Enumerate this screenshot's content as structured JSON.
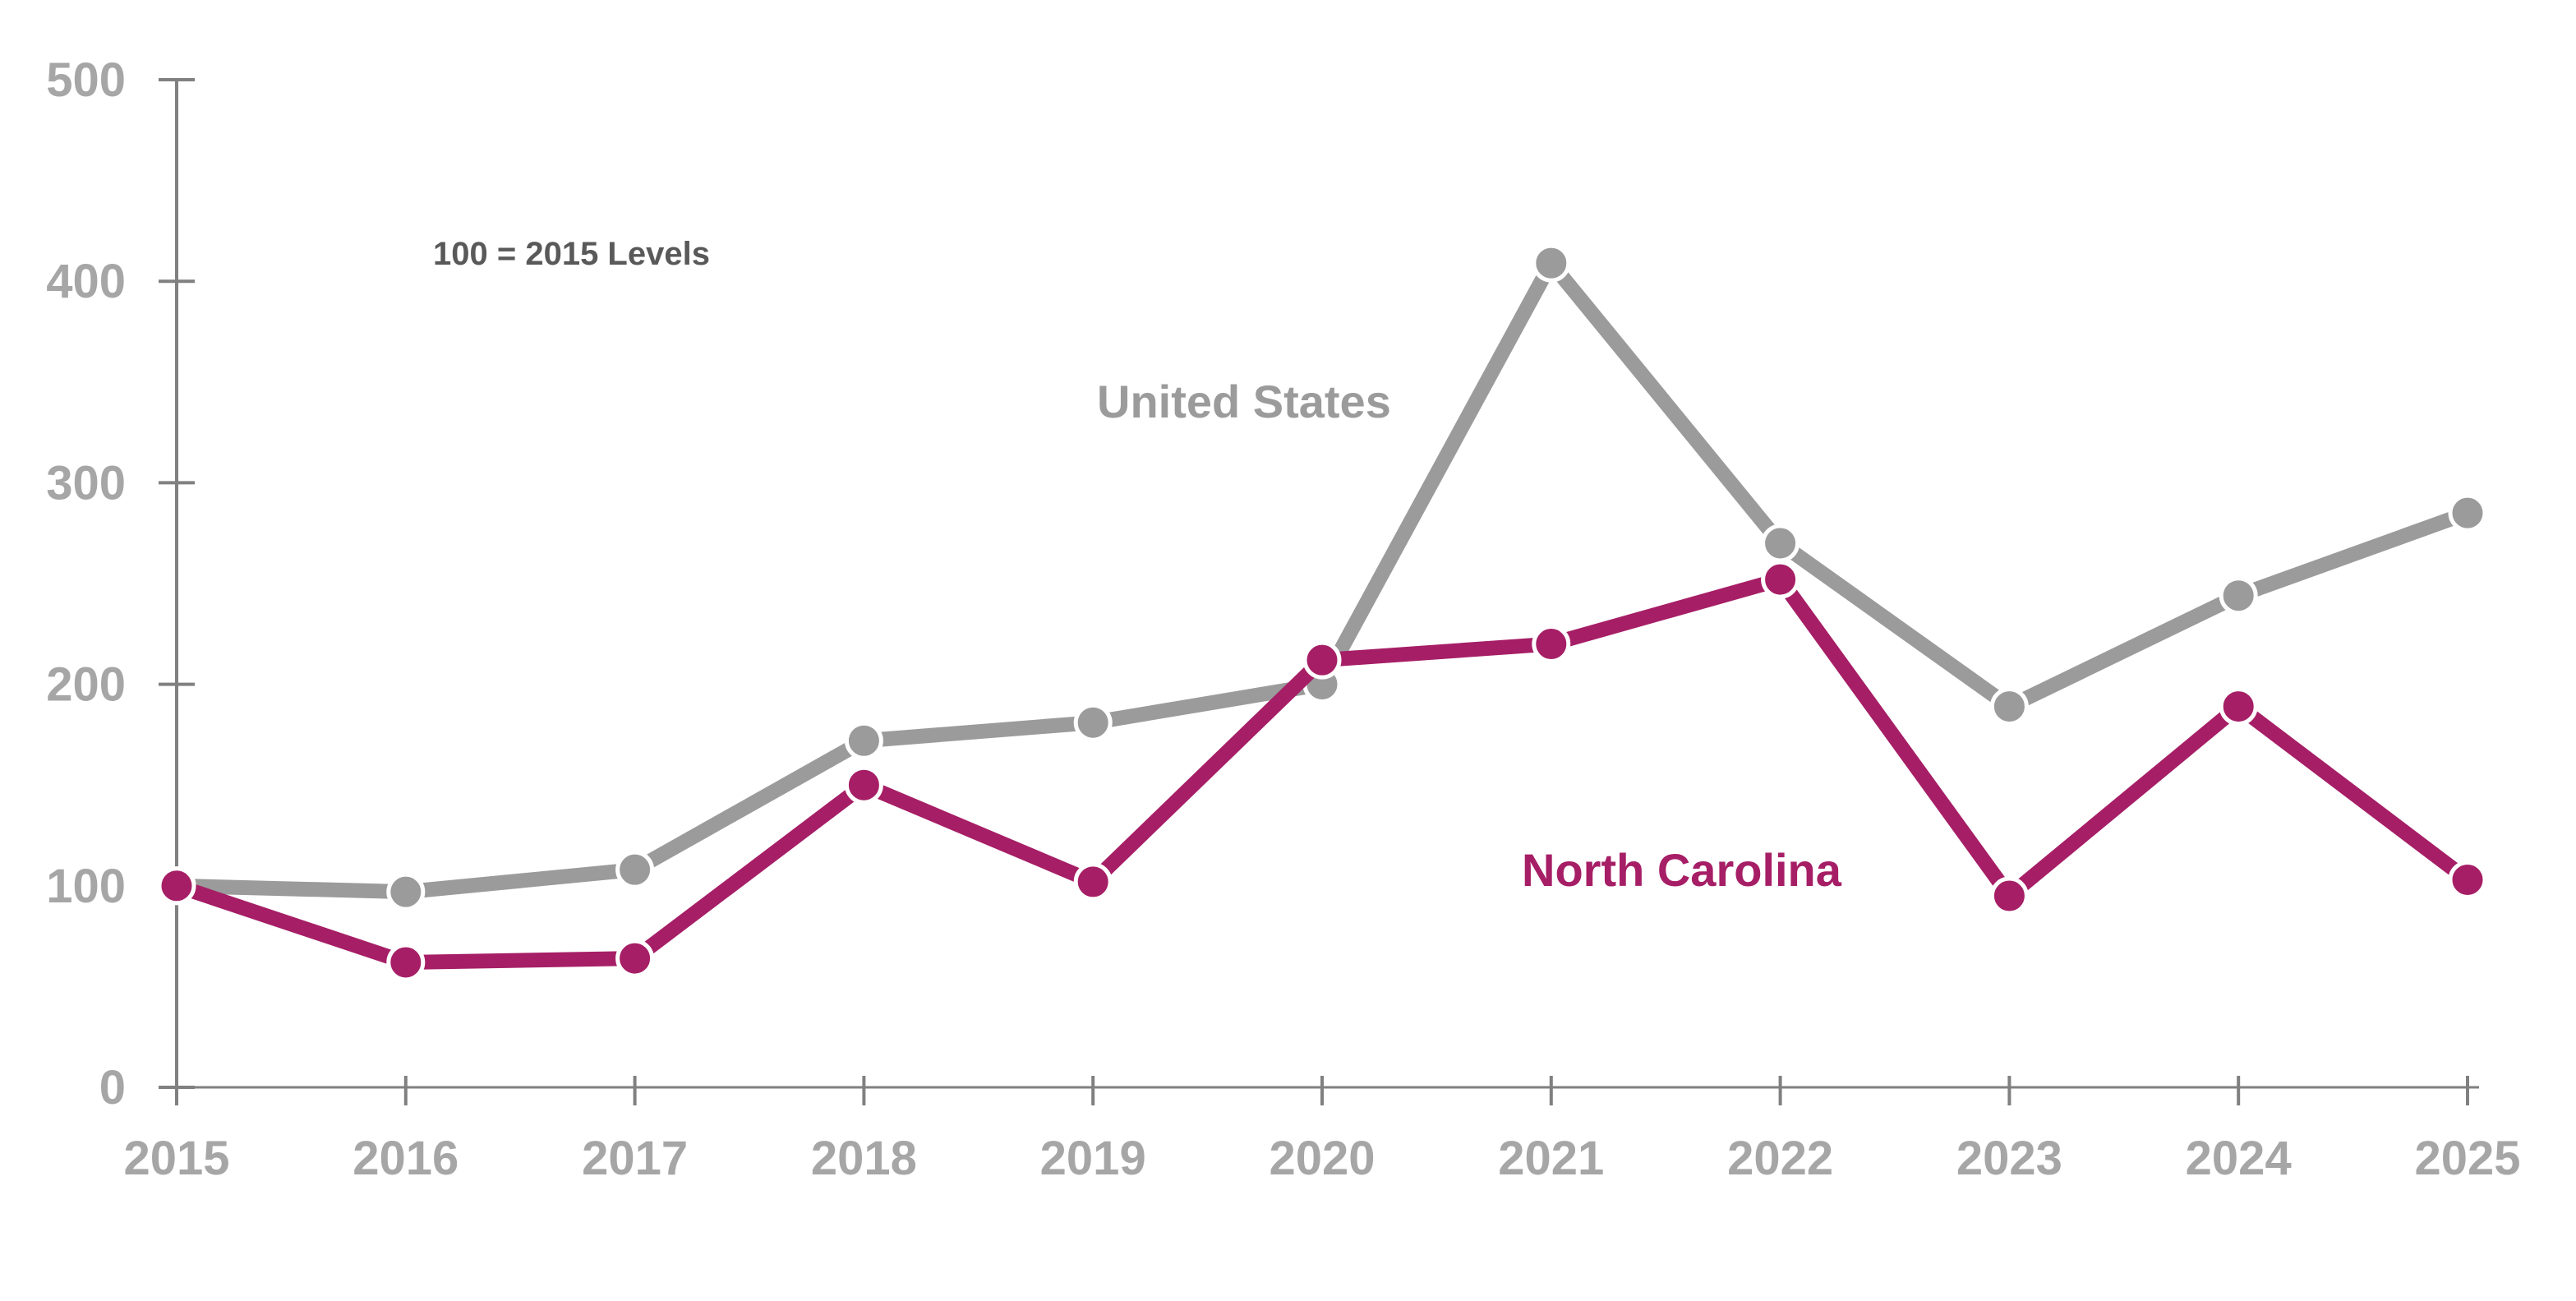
{
  "chart_data": {
    "type": "line",
    "title": "",
    "xlabel": "",
    "ylabel": "",
    "annotation": "100 = 2015 Levels",
    "x": [
      "2015",
      "2016",
      "2017",
      "2018",
      "2019",
      "2020",
      "2021",
      "2022",
      "2023",
      "2024",
      "2025"
    ],
    "ylim": [
      0,
      500
    ],
    "yticks": [
      "0",
      "100",
      "200",
      "300",
      "400",
      "500"
    ],
    "grid": false,
    "legend": "inline labels",
    "series": [
      {
        "name": "United States",
        "color": "#9b9b9b",
        "values": [
          100,
          97,
          108,
          172,
          181,
          200,
          409,
          270,
          189,
          244,
          285
        ]
      },
      {
        "name": "North Carolina",
        "color": "#a61e66",
        "values": [
          100,
          62,
          64,
          150,
          102,
          212,
          220,
          252,
          95,
          189,
          103
        ]
      }
    ]
  }
}
